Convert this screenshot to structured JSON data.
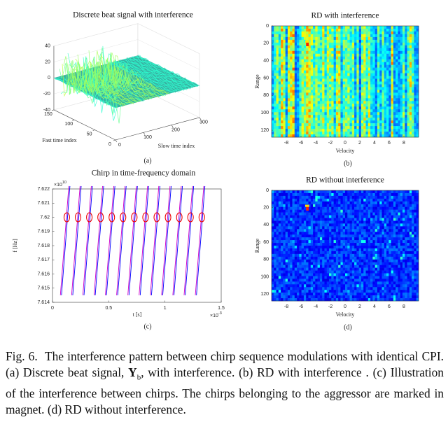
{
  "panels": [
    {
      "title": "Discrete beat signal with interference",
      "xlabel": "Slow time index",
      "xticks": [
        0,
        100,
        200,
        300
      ],
      "xlim": [
        0,
        300
      ],
      "ylabel": "Fast time index",
      "yticks": [
        0,
        50,
        100,
        150
      ],
      "ylim": [
        0,
        150
      ],
      "zticks": [
        -40,
        -20,
        0,
        20,
        40
      ],
      "zlim": [
        -40,
        40
      ],
      "caption": "(a)"
    },
    {
      "title": "RD with interference",
      "xlabel": "Velocity",
      "xticks": [
        -8,
        -6,
        -4,
        -2,
        0,
        2,
        4,
        6,
        8
      ],
      "xlim": [
        -10,
        10
      ],
      "ylabel": "Range",
      "yticks": [
        0,
        20,
        40,
        60,
        80,
        100,
        120
      ],
      "ylim": [
        0,
        128
      ],
      "caption": "(b)"
    },
    {
      "title": "Chirp in time-frequency domain",
      "xlabel": "t [s]",
      "xticks": [
        0,
        0.5,
        1,
        1.5
      ],
      "xlim": [
        0,
        1.5
      ],
      "xscale": {
        "base": "×10",
        "exp": "-3"
      },
      "ylabel": "f [Hz]",
      "yticks": [
        7.614,
        7.615,
        7.616,
        7.617,
        7.618,
        7.619,
        7.62,
        7.621,
        7.622
      ],
      "ylim": [
        7.614,
        7.622
      ],
      "yscale": {
        "base": "×10",
        "exp": "10"
      },
      "marker_level": 7.62,
      "series": [
        {
          "color": "#0000ff",
          "x": [
            0.08,
            0.155,
            null,
            0.18,
            0.255,
            null,
            0.28,
            0.355,
            null,
            0.38,
            0.455,
            null,
            0.48,
            0.555,
            null,
            0.58,
            0.655,
            null,
            0.68,
            0.755,
            null,
            0.78,
            0.855,
            null,
            0.88,
            0.955,
            null,
            0.98,
            1.055,
            null,
            1.08,
            1.155,
            null,
            1.18,
            1.255,
            null,
            1.28,
            1.355
          ],
          "values": [
            7.6145,
            7.6222,
            null,
            7.6145,
            7.6222,
            null,
            7.6145,
            7.6222,
            null,
            7.6145,
            7.6222,
            null,
            7.6145,
            7.6222,
            null,
            7.6145,
            7.6222,
            null,
            7.6145,
            7.6222,
            null,
            7.6145,
            7.6222,
            null,
            7.6145,
            7.6222,
            null,
            7.6145,
            7.6222,
            null,
            7.6145,
            7.6222,
            null,
            7.6145,
            7.6222,
            null,
            7.6145,
            7.6222
          ]
        },
        {
          "color": "#cc00cc",
          "x": [
            0.07,
            0.145,
            null,
            0.17,
            0.245,
            null,
            0.27,
            0.345,
            null,
            0.37,
            0.445,
            null,
            0.47,
            0.545,
            null,
            0.57,
            0.645,
            null,
            0.67,
            0.745,
            null,
            0.77,
            0.845,
            null,
            0.87,
            0.945,
            null,
            0.97,
            1.045,
            null,
            1.07,
            1.145,
            null,
            1.17,
            1.245,
            null,
            1.27,
            1.345
          ],
          "values": [
            7.6145,
            7.6222,
            null,
            7.6145,
            7.6222,
            null,
            7.6145,
            7.6222,
            null,
            7.6145,
            7.6222,
            null,
            7.6145,
            7.6222,
            null,
            7.6145,
            7.6222,
            null,
            7.6145,
            7.6222,
            null,
            7.6145,
            7.6222,
            null,
            7.6145,
            7.6222,
            null,
            7.6145,
            7.6222,
            null,
            7.6145,
            7.6222,
            null,
            7.6145,
            7.6222,
            null,
            7.6145,
            7.6222
          ]
        }
      ],
      "caption": "(c)"
    },
    {
      "title": "RD without interference",
      "xlabel": "Velocity",
      "xticks": [
        -8,
        -6,
        -4,
        -2,
        0,
        2,
        4,
        6,
        8
      ],
      "xlim": [
        -10,
        10
      ],
      "ylabel": "Range",
      "yticks": [
        0,
        20,
        40,
        60,
        80,
        100,
        120
      ],
      "ylim": [
        0,
        128
      ],
      "caption": "(d)"
    }
  ],
  "figure_caption": {
    "label": "Fig. 6.",
    "text_1": "The interference pattern between chirp sequence modulations with identical CPI. (a) Discrete beat signal, ",
    "symbol": "Y",
    "subscript": "b",
    "text_2": ", with interference. (b) RD with interference . (c) Illustration of the interference between chirps. The chirps belonging to the aggressor are marked in magnet. (d) RD without interference."
  }
}
